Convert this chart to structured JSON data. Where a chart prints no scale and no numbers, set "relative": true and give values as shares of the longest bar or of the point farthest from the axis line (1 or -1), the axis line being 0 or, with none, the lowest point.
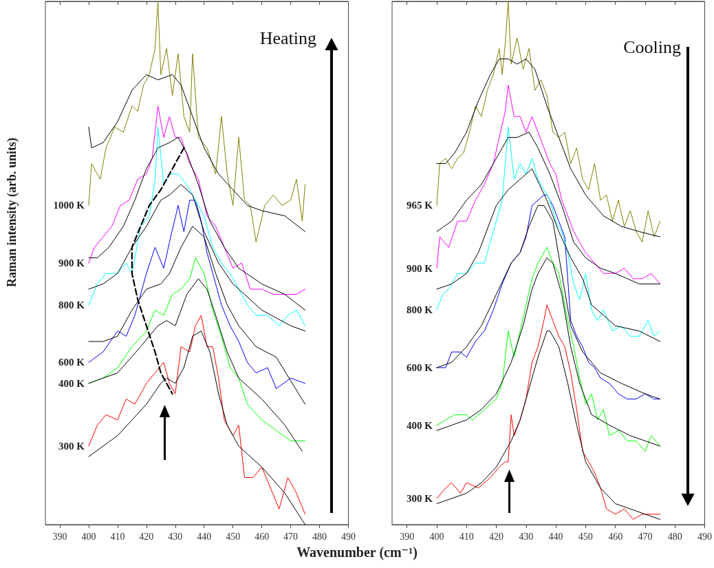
{
  "chart_data": [
    {
      "type": "line",
      "relative": true,
      "xlabel": "Wavenumber (cm⁻¹)",
      "ylabel": "Raman intensity (arb. units)",
      "xlim": [
        385,
        490
      ],
      "xticks": [
        390,
        400,
        410,
        420,
        430,
        440,
        450,
        460,
        470,
        480,
        490
      ],
      "grid": false,
      "legend": false,
      "marker": "none",
      "annotations": [
        "Heating"
      ],
      "series": [
        {
          "name": "300 K",
          "color": "#ff0000",
          "x": [
            400,
            403,
            406,
            410,
            413,
            416,
            420,
            423,
            426,
            428,
            430,
            432,
            435,
            437,
            439,
            441,
            443,
            445,
            447,
            450,
            452,
            454,
            457,
            460,
            463,
            466,
            469,
            472,
            475
          ],
          "values": [
            0.15,
            0.19,
            0.21,
            0.2,
            0.24,
            0.23,
            0.27,
            0.29,
            0.31,
            0.27,
            0.25,
            0.34,
            0.33,
            0.38,
            0.4,
            0.34,
            0.34,
            0.28,
            0.2,
            0.17,
            0.19,
            0.09,
            0.09,
            0.11,
            0.07,
            0.03,
            0.09,
            0.06,
            0.02
          ]
        },
        {
          "color": "#000000",
          "x": [
            400,
            410,
            420,
            425,
            427,
            430,
            433,
            436,
            439,
            442,
            445,
            448,
            452,
            460,
            468,
            475
          ],
          "values": [
            0.13,
            0.17,
            0.23,
            0.27,
            0.28,
            0.27,
            0.3,
            0.36,
            0.37,
            0.33,
            0.25,
            0.19,
            0.15,
            0.11,
            0.06,
            0.0
          ]
        },
        {
          "name": "400 K",
          "color": "#00ff00",
          "x": [
            400,
            405,
            410,
            415,
            420,
            423,
            426,
            429,
            432,
            435,
            437,
            440,
            443,
            446,
            449,
            452,
            455,
            460,
            465,
            470,
            475
          ],
          "values": [
            0.27,
            0.28,
            0.3,
            0.34,
            0.37,
            0.41,
            0.4,
            0.44,
            0.45,
            0.47,
            0.51,
            0.48,
            0.41,
            0.36,
            0.3,
            0.28,
            0.23,
            0.2,
            0.18,
            0.16,
            0.16
          ]
        },
        {
          "color": "#000000",
          "x": [
            400,
            410,
            418,
            424,
            427,
            430,
            434,
            438,
            441,
            444,
            448,
            452,
            460,
            468,
            474
          ],
          "values": [
            0.27,
            0.29,
            0.34,
            0.38,
            0.39,
            0.38,
            0.44,
            0.47,
            0.45,
            0.4,
            0.33,
            0.28,
            0.24,
            0.19,
            0.14
          ]
        },
        {
          "name": "600 K",
          "color": "#0000ff",
          "x": [
            400,
            405,
            410,
            413,
            416,
            420,
            423,
            426,
            428,
            431,
            433,
            435,
            437,
            439,
            441,
            443,
            446,
            449,
            452,
            455,
            458,
            462,
            465,
            470,
            475
          ],
          "values": [
            0.31,
            0.33,
            0.37,
            0.36,
            0.4,
            0.48,
            0.53,
            0.49,
            0.54,
            0.61,
            0.56,
            0.62,
            0.62,
            0.58,
            0.52,
            0.48,
            0.42,
            0.38,
            0.35,
            0.31,
            0.29,
            0.3,
            0.26,
            0.28,
            0.27
          ]
        },
        {
          "color": "#000000",
          "x": [
            400,
            405,
            410,
            415,
            420,
            425,
            428,
            432,
            436,
            440,
            444,
            448,
            452,
            458,
            465,
            475
          ],
          "values": [
            0.35,
            0.35,
            0.36,
            0.41,
            0.45,
            0.46,
            0.48,
            0.53,
            0.57,
            0.55,
            0.48,
            0.42,
            0.38,
            0.34,
            0.32,
            0.23
          ]
        },
        {
          "name": "800 K",
          "color": "#00ffff",
          "x": [
            400,
            403,
            406,
            410,
            413,
            415,
            418,
            421,
            423,
            424,
            426,
            428,
            431,
            434,
            437,
            440,
            443,
            446,
            449,
            452,
            455,
            458,
            462,
            466,
            469,
            472,
            475
          ],
          "values": [
            0.42,
            0.46,
            0.48,
            0.48,
            0.5,
            0.48,
            0.57,
            0.59,
            0.66,
            0.76,
            0.65,
            0.67,
            0.67,
            0.65,
            0.62,
            0.59,
            0.53,
            0.5,
            0.48,
            0.45,
            0.42,
            0.4,
            0.4,
            0.38,
            0.4,
            0.41,
            0.38
          ]
        },
        {
          "color": "#000000",
          "x": [
            400,
            405,
            410,
            415,
            420,
            425,
            428,
            432,
            436,
            440,
            445,
            450,
            460,
            470,
            475
          ],
          "values": [
            0.45,
            0.46,
            0.48,
            0.53,
            0.57,
            0.62,
            0.63,
            0.65,
            0.63,
            0.56,
            0.5,
            0.46,
            0.41,
            0.38,
            0.37
          ]
        },
        {
          "name": "900 K",
          "color": "#ff00ff",
          "x": [
            400,
            402,
            405,
            408,
            411,
            414,
            417,
            420,
            422,
            424,
            426,
            428,
            430,
            432,
            435,
            438,
            441,
            444,
            447,
            450,
            453,
            456,
            460,
            464,
            468,
            472,
            475
          ],
          "values": [
            0.5,
            0.53,
            0.55,
            0.57,
            0.61,
            0.62,
            0.66,
            0.67,
            0.7,
            0.8,
            0.74,
            0.78,
            0.74,
            0.74,
            0.69,
            0.66,
            0.59,
            0.57,
            0.53,
            0.49,
            0.5,
            0.45,
            0.45,
            0.44,
            0.44,
            0.44,
            0.45
          ]
        },
        {
          "color": "#000000",
          "x": [
            400,
            403,
            407,
            412,
            416,
            420,
            424,
            428,
            431,
            434,
            438,
            442,
            447,
            452,
            460,
            468,
            475
          ],
          "values": [
            0.51,
            0.51,
            0.53,
            0.57,
            0.62,
            0.68,
            0.72,
            0.73,
            0.74,
            0.71,
            0.65,
            0.58,
            0.53,
            0.49,
            0.46,
            0.44,
            0.41
          ]
        },
        {
          "name": "1000 K",
          "color": "#808000",
          "x": [
            400,
            401,
            404,
            406,
            409,
            412,
            415,
            417,
            419,
            421,
            423,
            424,
            425,
            427,
            429,
            431,
            433,
            435,
            436,
            438,
            441,
            444,
            446,
            448,
            450,
            452,
            454,
            456,
            458,
            461,
            464,
            467,
            470,
            472,
            474,
            475
          ],
          "values": [
            0.61,
            0.69,
            0.66,
            0.72,
            0.76,
            0.75,
            0.8,
            0.79,
            0.84,
            0.86,
            0.91,
            1.0,
            0.86,
            0.91,
            0.82,
            0.9,
            0.78,
            0.75,
            0.9,
            0.74,
            0.72,
            0.67,
            0.78,
            0.67,
            0.61,
            0.74,
            0.62,
            0.61,
            0.54,
            0.61,
            0.63,
            0.61,
            0.62,
            0.66,
            0.58,
            0.65
          ]
        },
        {
          "color": "#000000",
          "x": [
            400,
            401,
            405,
            410,
            415,
            420,
            424,
            429,
            432,
            436,
            440,
            445,
            450,
            455,
            460,
            468,
            475
          ],
          "values": [
            0.76,
            0.72,
            0.73,
            0.77,
            0.83,
            0.86,
            0.85,
            0.86,
            0.84,
            0.78,
            0.72,
            0.67,
            0.64,
            0.61,
            0.6,
            0.59,
            0.56
          ]
        },
        {
          "color": "#000000",
          "line_style": "dashed",
          "x": [
            433,
            429,
            425,
            421,
            418,
            415,
            415,
            417,
            420,
            423,
            425,
            429
          ],
          "values": [
            0.72,
            0.68,
            0.64,
            0.61,
            0.57,
            0.53,
            0.48,
            0.43,
            0.38,
            0.33,
            0.29,
            0.25
          ]
        }
      ]
    },
    {
      "type": "line",
      "relative": true,
      "xlim": [
        385,
        490
      ],
      "xticks": [
        390,
        400,
        410,
        420,
        430,
        440,
        450,
        460,
        470,
        480,
        490
      ],
      "grid": false,
      "legend": false,
      "marker": "none",
      "annotations": [
        "Cooling"
      ],
      "series": [
        {
          "name": "300 K",
          "color": "#ff0000",
          "x": [
            400,
            403,
            405,
            408,
            410,
            414,
            418,
            421,
            423,
            424,
            425,
            426,
            428,
            430,
            432,
            434,
            436,
            437,
            439,
            441,
            443,
            445,
            447,
            449,
            451,
            453,
            455,
            457,
            460,
            463,
            466,
            469,
            472,
            475
          ],
          "values": [
            0.05,
            0.07,
            0.08,
            0.06,
            0.08,
            0.07,
            0.09,
            0.11,
            0.12,
            0.12,
            0.21,
            0.17,
            0.2,
            0.24,
            0.31,
            0.34,
            0.39,
            0.42,
            0.39,
            0.36,
            0.34,
            0.29,
            0.22,
            0.14,
            0.12,
            0.1,
            0.07,
            0.03,
            0.02,
            0.03,
            0.01,
            0.02,
            0.02,
            0.02
          ]
        },
        {
          "color": "#000000",
          "x": [
            400,
            405,
            410,
            415,
            420,
            425,
            428,
            431,
            434,
            437,
            438,
            441,
            444,
            447,
            450,
            455,
            460,
            465,
            470,
            475
          ],
          "values": [
            0.04,
            0.05,
            0.06,
            0.08,
            0.11,
            0.16,
            0.2,
            0.26,
            0.32,
            0.37,
            0.37,
            0.34,
            0.27,
            0.19,
            0.12,
            0.07,
            0.04,
            0.03,
            0.02,
            0.01
          ]
        },
        {
          "name": "400 K",
          "color": "#00ff00",
          "x": [
            400,
            403,
            406,
            410,
            412,
            416,
            420,
            422,
            424,
            426,
            428,
            430,
            432,
            434,
            436,
            437,
            439,
            441,
            444,
            446,
            448,
            450,
            452,
            454,
            456,
            458,
            461,
            464,
            467,
            470,
            472,
            475
          ],
          "values": [
            0.19,
            0.2,
            0.21,
            0.21,
            0.2,
            0.22,
            0.24,
            0.27,
            0.37,
            0.32,
            0.37,
            0.42,
            0.47,
            0.5,
            0.52,
            0.53,
            0.5,
            0.48,
            0.39,
            0.34,
            0.28,
            0.23,
            0.25,
            0.2,
            0.22,
            0.17,
            0.18,
            0.16,
            0.16,
            0.14,
            0.17,
            0.15
          ]
        },
        {
          "color": "#000000",
          "x": [
            400,
            405,
            410,
            415,
            420,
            425,
            429,
            432,
            434,
            437,
            439,
            442,
            445,
            448,
            452,
            458,
            465,
            475
          ],
          "values": [
            0.18,
            0.19,
            0.2,
            0.22,
            0.25,
            0.31,
            0.38,
            0.45,
            0.48,
            0.51,
            0.5,
            0.44,
            0.34,
            0.27,
            0.21,
            0.19,
            0.17,
            0.15
          ]
        },
        {
          "name": "600 K",
          "color": "#0000ff",
          "x": [
            400,
            403,
            405,
            408,
            410,
            413,
            416,
            419,
            422,
            425,
            428,
            430,
            432,
            434,
            436,
            437,
            439,
            441,
            443,
            445,
            447,
            449,
            451,
            453,
            455,
            458,
            461,
            464,
            467,
            470,
            473,
            475
          ],
          "values": [
            0.3,
            0.3,
            0.33,
            0.33,
            0.32,
            0.35,
            0.37,
            0.41,
            0.46,
            0.5,
            0.52,
            0.55,
            0.61,
            0.62,
            0.63,
            0.63,
            0.61,
            0.58,
            0.55,
            0.39,
            0.36,
            0.34,
            0.31,
            0.3,
            0.28,
            0.27,
            0.25,
            0.24,
            0.24,
            0.25,
            0.24,
            0.24
          ]
        },
        {
          "color": "#000000",
          "x": [
            400,
            405,
            410,
            415,
            420,
            425,
            428,
            431,
            434,
            436,
            439,
            442,
            445,
            449,
            455,
            462,
            470,
            475
          ],
          "values": [
            0.3,
            0.31,
            0.34,
            0.38,
            0.44,
            0.5,
            0.52,
            0.57,
            0.61,
            0.61,
            0.58,
            0.48,
            0.38,
            0.33,
            0.29,
            0.27,
            0.25,
            0.24
          ]
        },
        {
          "name": "800 K",
          "color": "#00ffff",
          "x": [
            400,
            402,
            404,
            407,
            410,
            413,
            416,
            419,
            422,
            424,
            426,
            428,
            430,
            432,
            434,
            436,
            438,
            440,
            442,
            444,
            446,
            448,
            450,
            452,
            454,
            456,
            459,
            462,
            465,
            468,
            471,
            473,
            475
          ],
          "values": [
            0.41,
            0.44,
            0.45,
            0.48,
            0.48,
            0.5,
            0.5,
            0.56,
            0.62,
            0.76,
            0.66,
            0.69,
            0.67,
            0.7,
            0.66,
            0.64,
            0.62,
            0.58,
            0.56,
            0.52,
            0.46,
            0.43,
            0.48,
            0.41,
            0.39,
            0.41,
            0.37,
            0.38,
            0.36,
            0.36,
            0.39,
            0.36,
            0.37
          ]
        },
        {
          "color": "#000000",
          "x": [
            400,
            405,
            410,
            414,
            420,
            424,
            428,
            432,
            437,
            441,
            445,
            449,
            452,
            460,
            468,
            475
          ],
          "values": [
            0.45,
            0.46,
            0.48,
            0.52,
            0.61,
            0.64,
            0.66,
            0.68,
            0.62,
            0.56,
            0.51,
            0.47,
            0.42,
            0.38,
            0.37,
            0.35
          ]
        },
        {
          "name": "900 K",
          "color": "#ff00ff",
          "x": [
            400,
            401,
            404,
            407,
            410,
            413,
            416,
            419,
            421,
            423,
            424,
            426,
            428,
            430,
            432,
            434,
            436,
            438,
            440,
            442,
            444,
            446,
            448,
            450,
            453,
            456,
            460,
            463,
            466,
            469,
            472,
            475
          ],
          "values": [
            0.49,
            0.55,
            0.53,
            0.58,
            0.58,
            0.62,
            0.65,
            0.69,
            0.74,
            0.79,
            0.84,
            0.78,
            0.78,
            0.75,
            0.78,
            0.75,
            0.72,
            0.69,
            0.67,
            0.62,
            0.59,
            0.56,
            0.54,
            0.52,
            0.5,
            0.48,
            0.48,
            0.49,
            0.47,
            0.47,
            0.48,
            0.46
          ]
        },
        {
          "color": "#000000",
          "x": [
            400,
            405,
            410,
            415,
            420,
            424,
            427,
            431,
            434,
            438,
            442,
            446,
            450,
            455,
            460,
            468,
            475
          ],
          "values": [
            0.56,
            0.58,
            0.62,
            0.65,
            0.7,
            0.74,
            0.74,
            0.75,
            0.72,
            0.67,
            0.61,
            0.54,
            0.51,
            0.49,
            0.48,
            0.46,
            0.46
          ]
        },
        {
          "name": "965 K",
          "color": "#808000",
          "x": [
            400,
            401,
            403,
            405,
            407,
            409,
            411,
            413,
            415,
            417,
            419,
            421,
            422,
            423,
            424,
            425,
            427,
            429,
            431,
            433,
            435,
            437,
            439,
            441,
            443,
            445,
            447,
            449,
            451,
            453,
            455,
            457,
            459,
            461,
            463,
            465,
            467,
            469,
            471,
            473,
            475
          ],
          "values": [
            0.61,
            0.69,
            0.7,
            0.68,
            0.7,
            0.71,
            0.75,
            0.8,
            0.78,
            0.83,
            0.86,
            0.91,
            0.86,
            0.92,
            1.0,
            0.88,
            0.93,
            0.87,
            0.91,
            0.83,
            0.85,
            0.82,
            0.75,
            0.74,
            0.75,
            0.69,
            0.72,
            0.66,
            0.64,
            0.69,
            0.62,
            0.63,
            0.58,
            0.62,
            0.57,
            0.6,
            0.56,
            0.54,
            0.6,
            0.55,
            0.58
          ]
        },
        {
          "color": "#000000",
          "x": [
            400,
            403,
            406,
            410,
            414,
            418,
            421,
            424,
            427,
            430,
            433,
            437,
            441,
            445,
            450,
            456,
            462,
            468,
            475
          ],
          "values": [
            0.69,
            0.69,
            0.71,
            0.75,
            0.81,
            0.86,
            0.89,
            0.89,
            0.88,
            0.89,
            0.87,
            0.8,
            0.74,
            0.68,
            0.63,
            0.59,
            0.57,
            0.56,
            0.55
          ]
        }
      ]
    }
  ]
}
